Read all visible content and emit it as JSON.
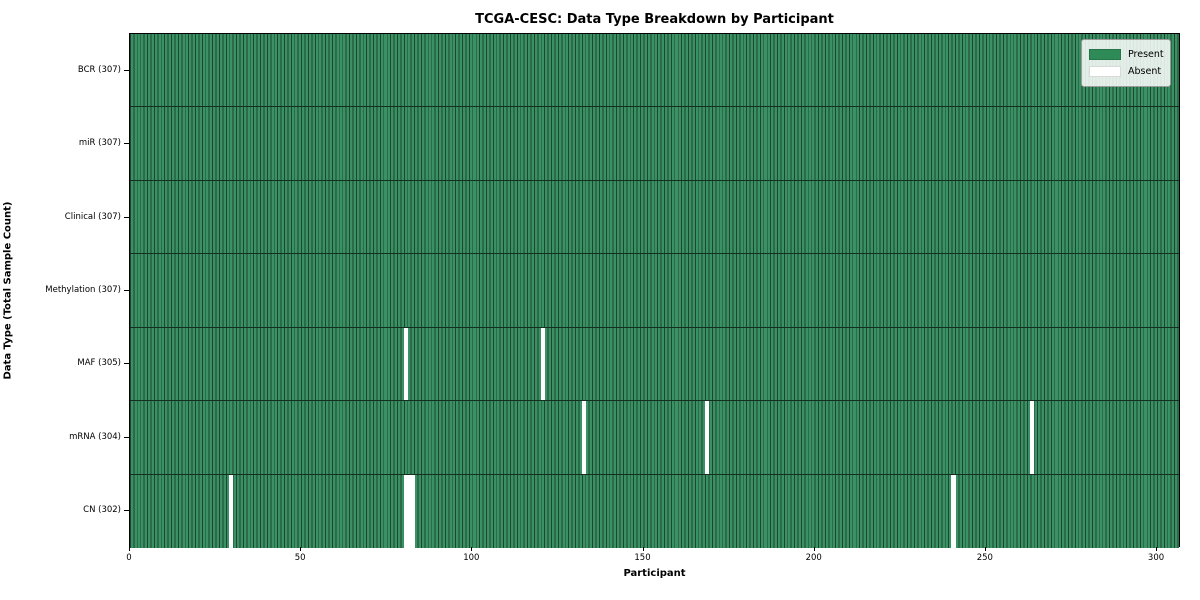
{
  "title": "TCGA-CESC: Data Type Breakdown by Participant",
  "chart_data": {
    "type": "heatmap",
    "title": "TCGA-CESC: Data Type Breakdown by Participant",
    "xlabel": "Participant",
    "ylabel": "Data Type (Total Sample Count)",
    "x_range": [
      0,
      307
    ],
    "n_participants": 307,
    "x_ticks": [
      0,
      50,
      100,
      150,
      200,
      250,
      300
    ],
    "grid": false,
    "legend_position": "upper right",
    "legend": [
      {
        "label": "Present",
        "color": "#2e8b57"
      },
      {
        "label": "Absent",
        "color": "#ffffff"
      }
    ],
    "colors": {
      "present_fill": "#3a9164",
      "bar_edge": "#1d4530",
      "row_divider": "#142e1f",
      "absent": "#ffffff"
    },
    "rows": [
      {
        "name": "BCR",
        "label": "BCR (307)",
        "total": 307,
        "absent_participants": []
      },
      {
        "name": "miR",
        "label": "miR (307)",
        "total": 307,
        "absent_participants": []
      },
      {
        "name": "Clinical",
        "label": "Clinical (307)",
        "total": 307,
        "absent_participants": []
      },
      {
        "name": "Methylation",
        "label": "Methylation (307)",
        "total": 307,
        "absent_participants": []
      },
      {
        "name": "MAF",
        "label": "MAF (305)",
        "total": 305,
        "absent_participants": [
          80,
          120
        ]
      },
      {
        "name": "mRNA",
        "label": "mRNA (304)",
        "total": 304,
        "absent_participants": [
          132,
          168,
          263
        ]
      },
      {
        "name": "CN",
        "label": "CN (302)",
        "total": 302,
        "absent_participants": [
          29,
          80,
          81,
          82,
          240
        ]
      }
    ]
  }
}
